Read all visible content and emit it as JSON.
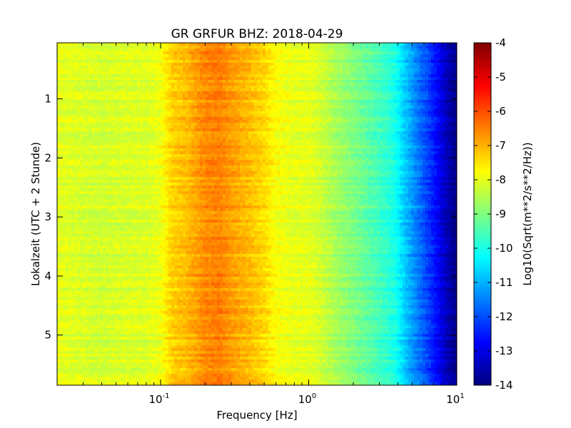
{
  "chart_data": {
    "type": "heatmap",
    "title": "GR GRFUR BHZ: 2018-04-29",
    "xlabel": "Frequency [Hz]",
    "ylabel": "Lokalzeit (UTC + 2 Stunde)",
    "x_scale": "log",
    "xlim": [
      0.02,
      10
    ],
    "ylim": [
      5.85,
      0.05
    ],
    "x_ticks": [
      {
        "value": 0.1,
        "base": "10",
        "exp": "-1"
      },
      {
        "value": 1,
        "base": "10",
        "exp": "0"
      },
      {
        "value": 10,
        "base": "10",
        "exp": "1"
      }
    ],
    "y_ticks": [
      {
        "value": 1,
        "label": "1"
      },
      {
        "value": 2,
        "label": "2"
      },
      {
        "value": 3,
        "label": "3"
      },
      {
        "value": 4,
        "label": "4"
      },
      {
        "value": 5,
        "label": "5"
      }
    ],
    "colormap": "jet",
    "colorbar": {
      "label": "Log10(Sqrt(m**2/s**2/Hz))",
      "range": [
        -14,
        -4
      ],
      "ticks": [
        "-4",
        "-5",
        "-6",
        "-7",
        "-8",
        "-9",
        "-10",
        "-11",
        "-12",
        "-13",
        "-14"
      ]
    },
    "spectral_profile": {
      "frequencies_hz": [
        0.02,
        0.04,
        0.06,
        0.08,
        0.1,
        0.12,
        0.15,
        0.2,
        0.25,
        0.3,
        0.4,
        0.5,
        0.6,
        0.8,
        1.0,
        1.2,
        1.5,
        2.0,
        3.0,
        3.8,
        4.5,
        5.5,
        6.5,
        7.5,
        8.5,
        10.0
      ],
      "log_amplitude": [
        -8.0,
        -8.2,
        -8.1,
        -8.1,
        -7.9,
        -7.3,
        -7.1,
        -6.6,
        -6.5,
        -6.8,
        -7.1,
        -7.4,
        -7.8,
        -8.0,
        -8.0,
        -8.2,
        -8.6,
        -9.0,
        -9.6,
        -10.0,
        -10.8,
        -11.6,
        -12.2,
        -12.8,
        -13.4,
        -14.0
      ]
    },
    "grid": false,
    "legend": "none"
  }
}
